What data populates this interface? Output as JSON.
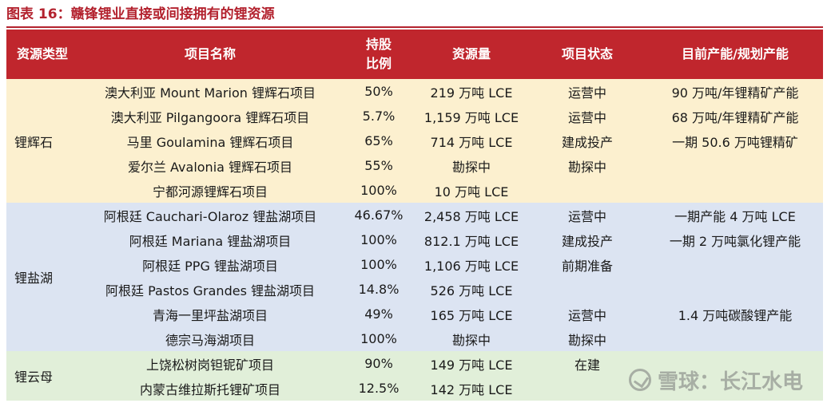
{
  "title": "图表 16：赣锋锂业直接或间接拥有的锂资源",
  "headers": {
    "type": "资源类型",
    "project": "项目名称",
    "share_line1": "持股",
    "share_line2": "比例",
    "resource": "资源量",
    "status": "项目状态",
    "capacity": "目前产能/规划产能"
  },
  "groups": {
    "spodumene": "锂辉石",
    "brine": "锂盐湖",
    "mica": "锂云母"
  },
  "rows": [
    {
      "project": "澳大利亚 Mount Marion 锂辉石项目",
      "share": "50%",
      "resource": "219 万吨 LCE",
      "status": "运营中",
      "capacity": "90 万吨/年锂精矿产能"
    },
    {
      "project": "澳大利亚 Pilgangoora 锂辉石项目",
      "share": "5.7%",
      "resource": "1,159 万吨 LCE",
      "status": "运营中",
      "capacity": "68 万吨/年锂精矿产能"
    },
    {
      "project": "马里 Goulamina 锂辉石项目",
      "share": "65%",
      "resource": "714 万吨 LCE",
      "status": "建成投产",
      "capacity": "一期 50.6 万吨锂精矿"
    },
    {
      "project": "爱尔兰 Avalonia 锂辉石项目",
      "share": "55%",
      "resource": "勘探中",
      "status": "勘探中",
      "capacity": ""
    },
    {
      "project": "宁都河源锂辉石项目",
      "share": "100%",
      "resource": "10 万吨 LCE",
      "status": "",
      "capacity": ""
    },
    {
      "project": "阿根廷 Cauchari-Olaroz 锂盐湖项目",
      "share": "46.67%",
      "resource": "2,458 万吨 LCE",
      "status": "运营中",
      "capacity": "一期产能 4 万吨 LCE"
    },
    {
      "project": "阿根廷 Mariana 锂盐湖项目",
      "share": "100%",
      "resource": "812.1 万吨 LCE",
      "status": "建成投产",
      "capacity": "一期 2 万吨氯化锂产能"
    },
    {
      "project": "阿根廷 PPG 锂盐湖项目",
      "share": "100%",
      "resource": "1,106 万吨 LCE",
      "status": "前期准备",
      "capacity": ""
    },
    {
      "project": "阿根廷 Pastos Grandes 锂盐湖项目",
      "share": "14.8%",
      "resource": "526 万吨 LCE",
      "status": "",
      "capacity": ""
    },
    {
      "project": "青海一里坪盐湖项目",
      "share": "49%",
      "resource": "165 万吨 LCE",
      "status": "运营中",
      "capacity": "1.4 万吨碳酸锂产能"
    },
    {
      "project": "德宗马海湖项目",
      "share": "100%",
      "resource": "勘探中",
      "status": "勘探中",
      "capacity": ""
    },
    {
      "project": "上饶松树岗钽铌矿项目",
      "share": "90%",
      "resource": "149 万吨 LCE",
      "status": "在建",
      "capacity": ""
    },
    {
      "project": "内蒙古维拉斯托锂矿项目",
      "share": "12.5%",
      "resource": "142 万吨 LCE",
      "status": "",
      "capacity": ""
    }
  ],
  "watermark": "雪球：长江水电",
  "colors": {
    "accent": "#c0262d",
    "spodumene_bg": "#fcf0cf",
    "brine_bg": "#dce4f2",
    "mica_bg": "#e1efd9"
  }
}
